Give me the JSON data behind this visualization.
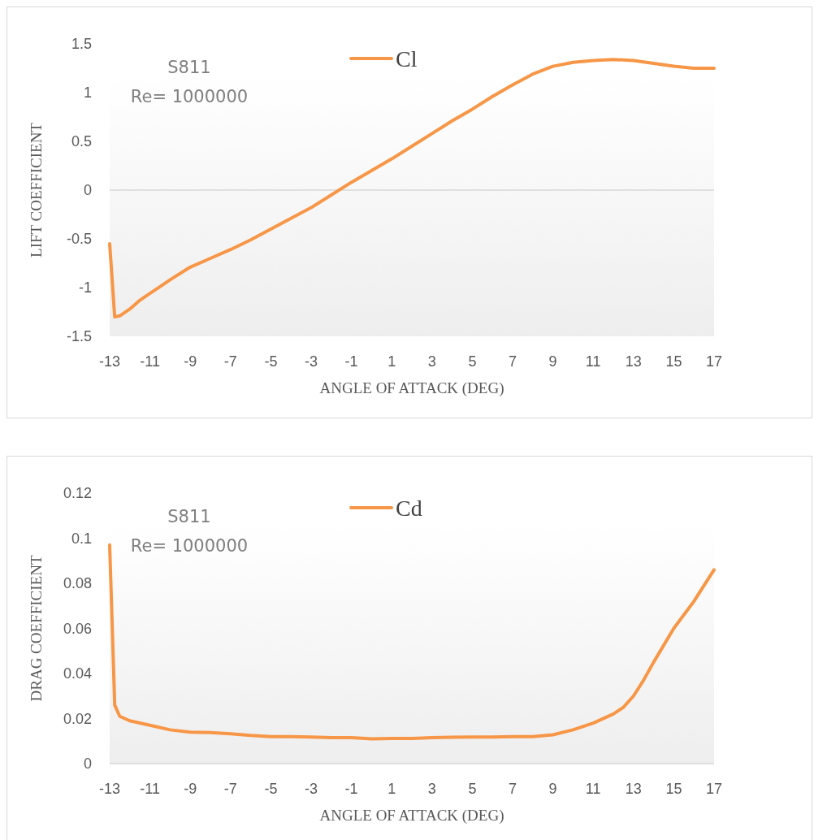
{
  "chart_data": [
    {
      "type": "line",
      "xlabel": "ANGLE OF ATTACK (DEG)",
      "ylabel": "LIFT COEFFICIENT",
      "annotations": [
        "S811",
        "Re= 1000000"
      ],
      "xlim": [
        -13,
        17
      ],
      "xticks": [
        -13,
        -11,
        -9,
        -7,
        -5,
        -3,
        -1,
        1,
        3,
        5,
        7,
        9,
        11,
        13,
        15,
        17
      ],
      "ylim": [
        -1.5,
        1.5
      ],
      "yticks": [
        -1.5,
        -1,
        -0.5,
        0,
        0.5,
        1,
        1.5
      ],
      "legend": "top",
      "marker": "none",
      "x": [
        -13,
        -12.75,
        -12.5,
        -12,
        -11.5,
        -11,
        -10.5,
        -10,
        -9,
        -8,
        -7,
        -6,
        -5,
        -4,
        -3,
        -2,
        -1,
        0,
        1,
        2,
        3,
        4,
        5,
        6,
        7,
        8,
        9,
        10,
        11,
        12,
        13,
        14,
        15,
        16,
        17
      ],
      "series": [
        {
          "name": "Cl",
          "color": "#f79646",
          "values": [
            -0.55,
            -1.3,
            -1.29,
            -1.22,
            -1.13,
            -1.06,
            -0.99,
            -0.92,
            -0.79,
            -0.7,
            -0.61,
            -0.51,
            -0.4,
            -0.29,
            -0.18,
            -0.05,
            0.08,
            0.2,
            0.32,
            0.45,
            0.58,
            0.71,
            0.83,
            0.96,
            1.08,
            1.19,
            1.27,
            1.31,
            1.33,
            1.34,
            1.33,
            1.3,
            1.27,
            1.25,
            1.25
          ]
        }
      ]
    },
    {
      "type": "line",
      "xlabel": "ANGLE OF ATTACK (DEG)",
      "ylabel": "DRAG COEFFICIENT",
      "annotations": [
        "S811",
        "Re= 1000000"
      ],
      "xlim": [
        -13,
        17
      ],
      "xticks": [
        -13,
        -11,
        -9,
        -7,
        -5,
        -3,
        -1,
        1,
        3,
        5,
        7,
        9,
        11,
        13,
        15,
        17
      ],
      "ylim": [
        0,
        0.12
      ],
      "yticks": [
        0,
        0.02,
        0.04,
        0.06,
        0.08,
        0.1,
        0.12
      ],
      "legend": "top",
      "marker": "none",
      "x": [
        -13,
        -12.75,
        -12.5,
        -12,
        -11,
        -10,
        -9,
        -8,
        -7,
        -6,
        -5,
        -4,
        -3,
        -2,
        -1,
        0,
        1,
        2,
        3,
        4,
        5,
        6,
        7,
        8,
        9,
        10,
        11,
        12,
        12.5,
        13,
        13.5,
        14,
        15,
        16,
        17
      ],
      "series": [
        {
          "name": "Cd",
          "color": "#f79646",
          "values": [
            0.097,
            0.026,
            0.021,
            0.019,
            0.017,
            0.015,
            0.014,
            0.0138,
            0.0132,
            0.0125,
            0.012,
            0.012,
            0.0118,
            0.0115,
            0.0115,
            0.011,
            0.0112,
            0.0112,
            0.0115,
            0.0117,
            0.0118,
            0.0118,
            0.012,
            0.012,
            0.0128,
            0.015,
            0.018,
            0.022,
            0.025,
            0.03,
            0.037,
            0.045,
            0.06,
            0.072,
            0.086
          ]
        }
      ]
    }
  ]
}
